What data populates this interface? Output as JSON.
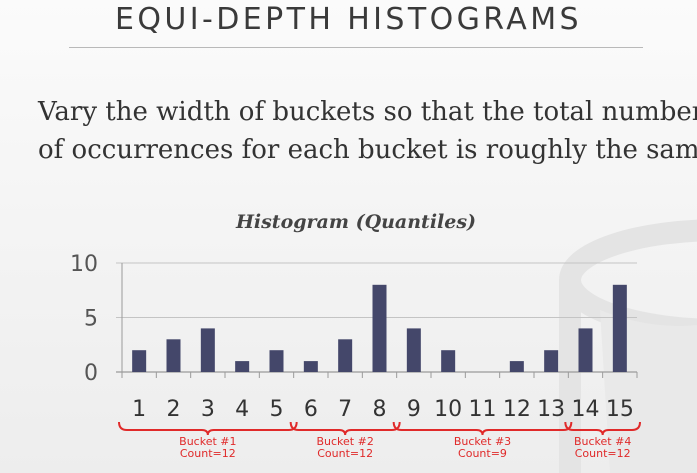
{
  "slide": {
    "title": "EQUI-DEPTH HISTOGRAMS",
    "body_line1": "Vary the width of buckets so that the total number",
    "body_line2": "of occurrences for each bucket is roughly the same."
  },
  "colors": {
    "bar": "#44476a",
    "bracket": "#e02a2a",
    "bucket_text": "#e02a2a",
    "axis": "#9a9a9a",
    "watermark": "#e2e2e2"
  },
  "icons": {
    "watermark": "database-icon"
  },
  "chart_data": {
    "type": "bar",
    "title": "Histogram (Quantiles)",
    "xlabel": "",
    "ylabel": "",
    "categories": [
      "1",
      "2",
      "3",
      "4",
      "5",
      "6",
      "7",
      "8",
      "9",
      "10",
      "11",
      "12",
      "13",
      "14",
      "15"
    ],
    "values": [
      2,
      3,
      4,
      1,
      2,
      1,
      3,
      8,
      4,
      2,
      0,
      1,
      2,
      4,
      8
    ],
    "ylim": [
      0,
      10
    ],
    "yticks": [
      "0",
      "5",
      "10"
    ],
    "grid": true,
    "legend": "none",
    "buckets": [
      {
        "label": "Bucket #1",
        "count": "Count=12",
        "from": 1,
        "to": 5
      },
      {
        "label": "Bucket #2",
        "count": "Count=12",
        "from": 6,
        "to": 8
      },
      {
        "label": "Bucket #3",
        "count": "Count=9",
        "from": 9,
        "to": 13
      },
      {
        "label": "Bucket #4",
        "count": "Count=12",
        "from": 14,
        "to": 15
      }
    ]
  }
}
